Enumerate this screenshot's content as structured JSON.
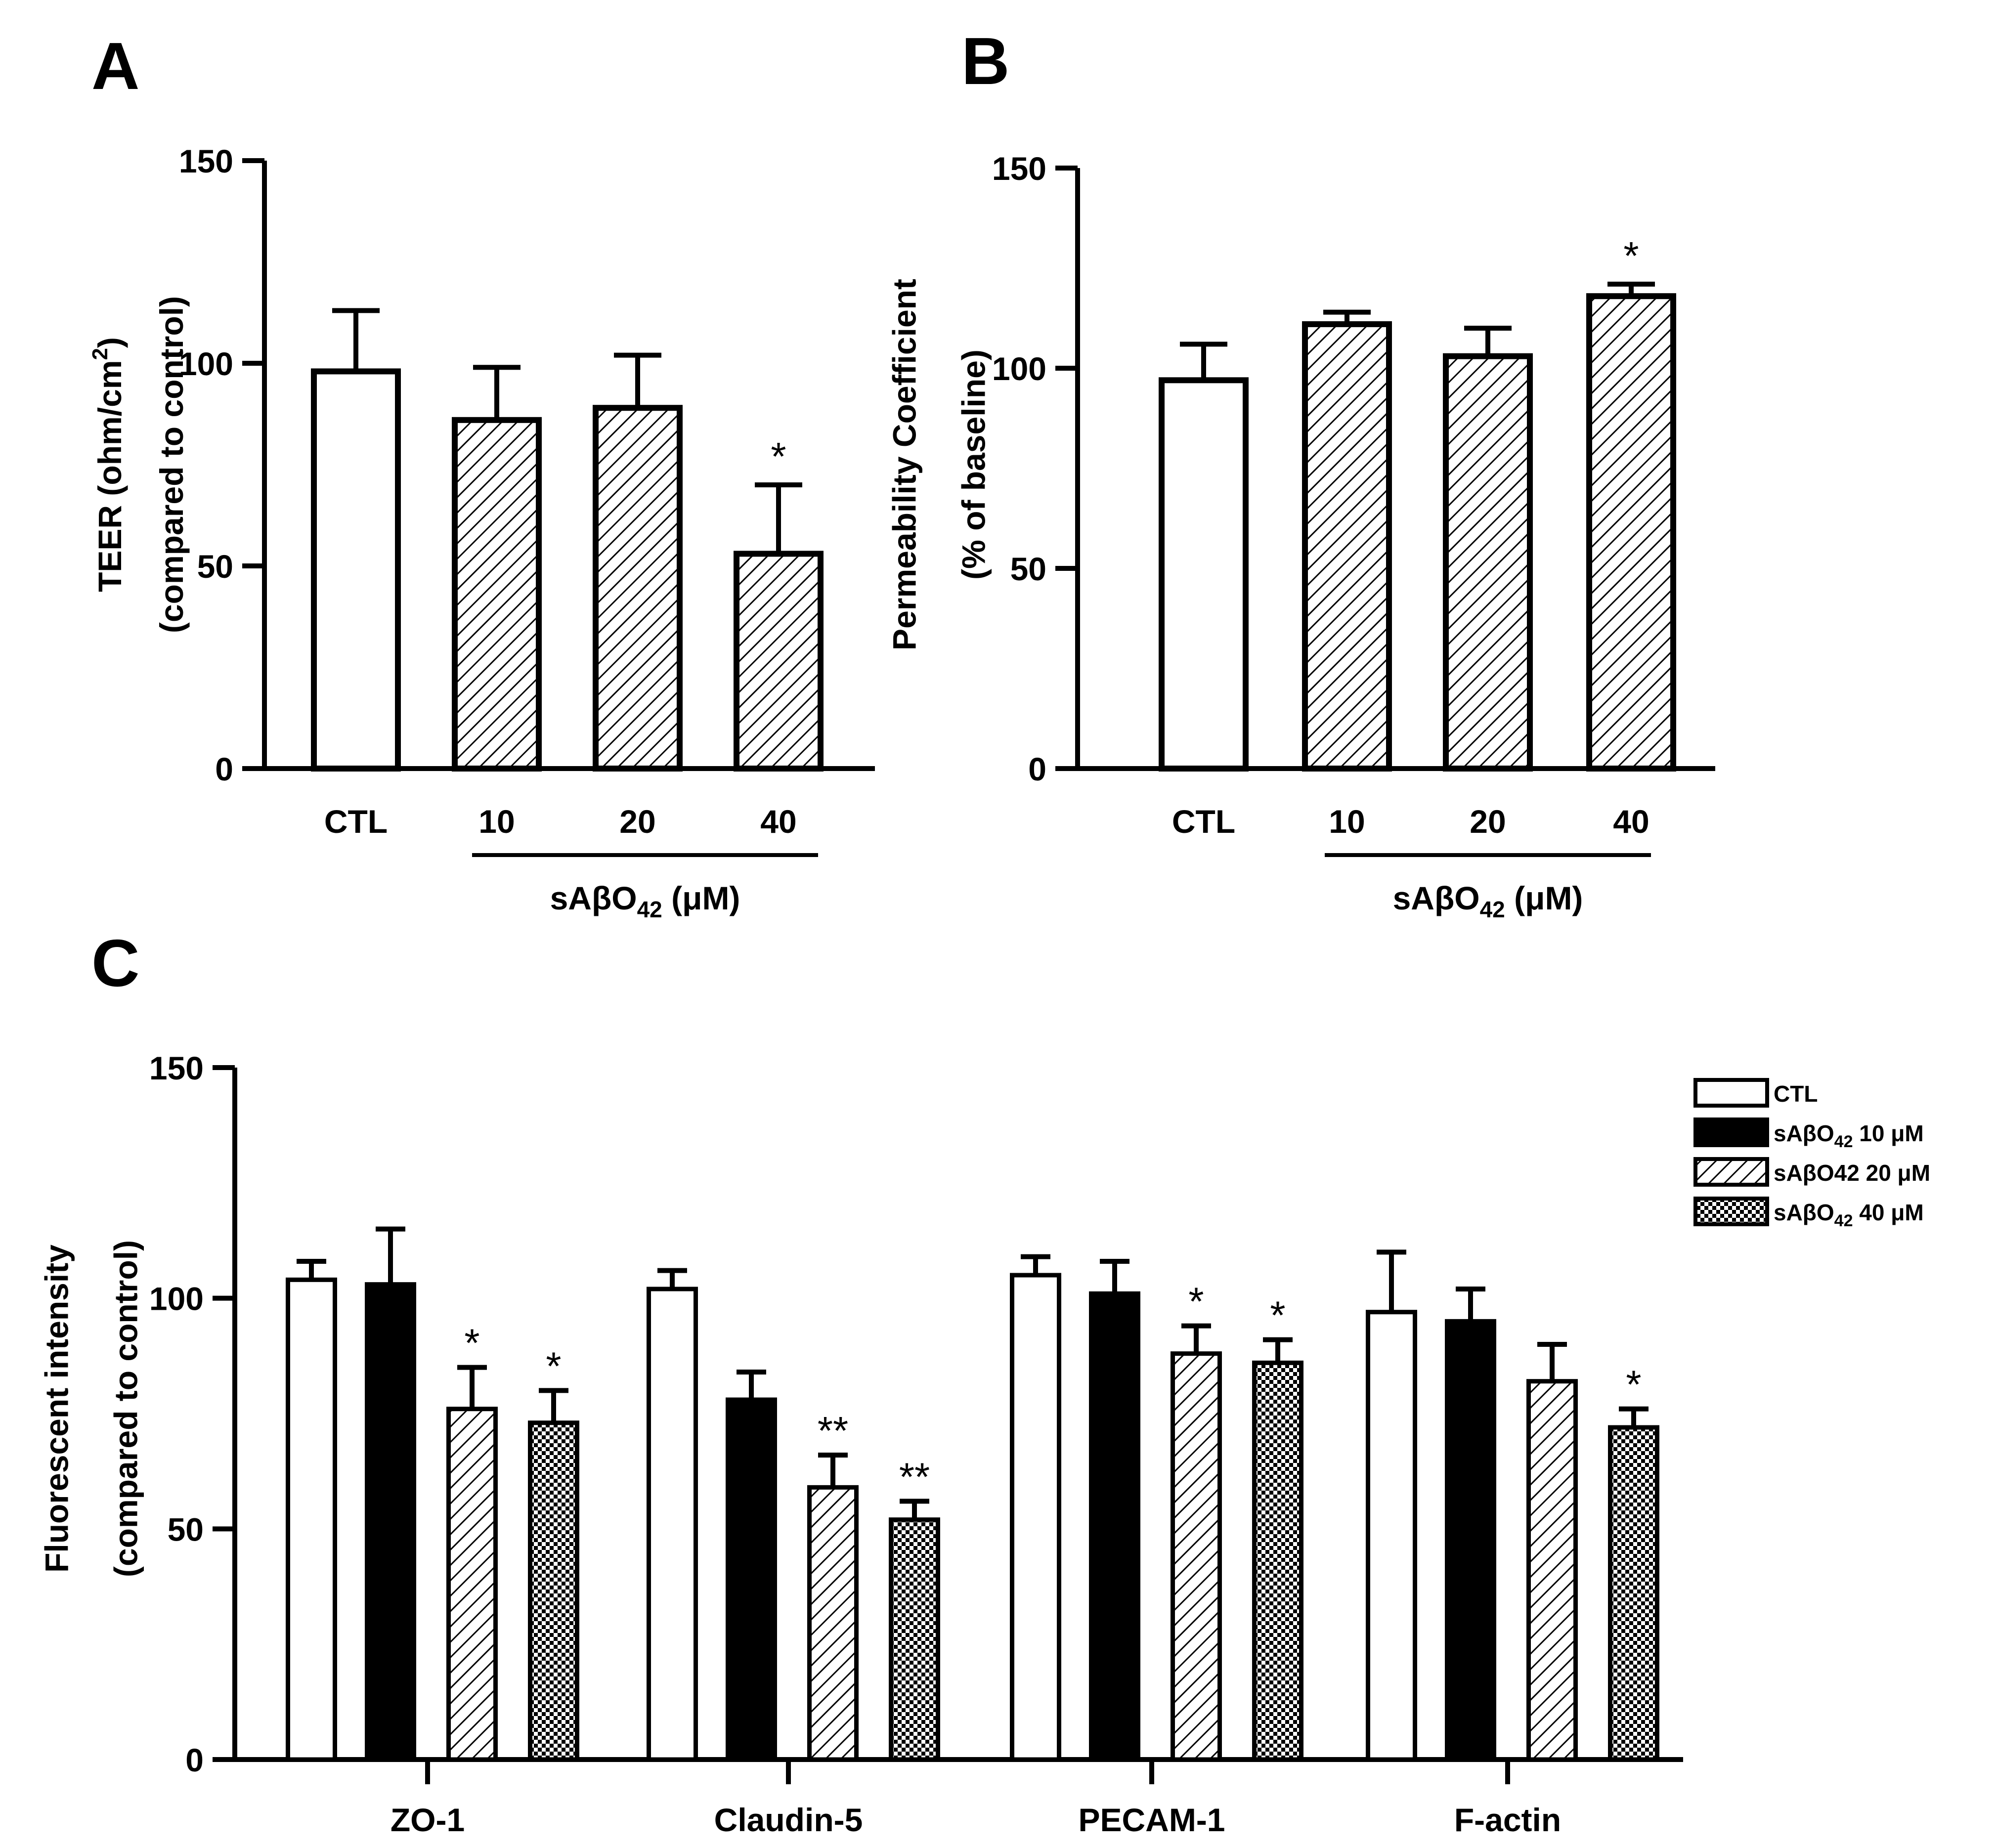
{
  "panels": {
    "a": "A",
    "b": "B",
    "c": "C"
  },
  "colors": {
    "white": "#ffffff",
    "black": "#000000"
  },
  "chart_data": [
    {
      "id": "A",
      "type": "bar",
      "ylabel_line1": "TEER (ohm/cm",
      "ylabel_sup": "2",
      "ylabel_close": ")",
      "ylabel_line2": "(compared to control)",
      "ylim": [
        0,
        150
      ],
      "yticks": [
        0,
        50,
        100,
        150
      ],
      "categories": [
        "CTL",
        "10",
        "20",
        "40"
      ],
      "fills": [
        "white",
        "hatch",
        "hatch",
        "hatch"
      ],
      "values": [
        98,
        86,
        89,
        53
      ],
      "errors": [
        15,
        13,
        13,
        17
      ],
      "significance": [
        "",
        "",
        "",
        "*"
      ],
      "group_label": {
        "prefix": "sAβO",
        "sub": "42",
        "suffix": " (μM)"
      }
    },
    {
      "id": "B",
      "type": "bar",
      "ylabel_line1": "Permeability Coefficient",
      "ylabel_line2": "(% of baseline)",
      "ylim": [
        0,
        150
      ],
      "yticks": [
        0,
        50,
        100,
        150
      ],
      "categories": [
        "CTL",
        "10",
        "20",
        "40"
      ],
      "fills": [
        "white",
        "hatch",
        "hatch",
        "hatch"
      ],
      "values": [
        97,
        111,
        103,
        118
      ],
      "errors": [
        9,
        3,
        7,
        3
      ],
      "significance": [
        "",
        "",
        "",
        "*"
      ],
      "group_label": {
        "prefix": "sAβO",
        "sub": "42",
        "suffix": " (μM)"
      }
    },
    {
      "id": "C",
      "type": "bar",
      "ylabel_line1": "Fluorescent intensity",
      "ylabel_line2": "(compared to control)",
      "ylim": [
        0,
        150
      ],
      "yticks": [
        0,
        50,
        100,
        150
      ],
      "categories": [
        "ZO-1",
        "Claudin-5",
        "PECAM-1",
        "F-actin"
      ],
      "series": [
        {
          "name": "CTL",
          "fill": "white",
          "values": [
            104,
            102,
            105,
            97
          ],
          "errors": [
            4,
            4,
            4,
            13
          ],
          "significance": [
            "",
            "",
            "",
            ""
          ]
        },
        {
          "name": "sAβO42 10 μM",
          "fill": "black",
          "values": [
            103,
            78,
            101,
            95
          ],
          "errors": [
            12,
            6,
            7,
            7
          ],
          "significance": [
            "",
            "",
            "",
            ""
          ]
        },
        {
          "name": "sAβO42 20 μM",
          "fill": "hatch",
          "values": [
            76,
            59,
            88,
            82
          ],
          "errors": [
            9,
            7,
            6,
            8
          ],
          "significance": [
            "*",
            "**",
            "*",
            ""
          ]
        },
        {
          "name": "sAβO42 40 μM",
          "fill": "check",
          "values": [
            73,
            52,
            86,
            72
          ],
          "errors": [
            7,
            4,
            5,
            4
          ],
          "significance": [
            "*",
            "**",
            "*",
            "*"
          ]
        }
      ],
      "legend": [
        {
          "label": "CTL"
        },
        {
          "prefix": "sAβO",
          "sub": "42",
          "suffix": " 10 μM"
        },
        {
          "prefix": "sAβO42",
          "sub": "",
          "suffix": " 20 μM"
        },
        {
          "prefix": "sAβO",
          "sub": "42",
          "suffix": " 40 μM"
        }
      ],
      "legend_position": "top-right"
    }
  ]
}
